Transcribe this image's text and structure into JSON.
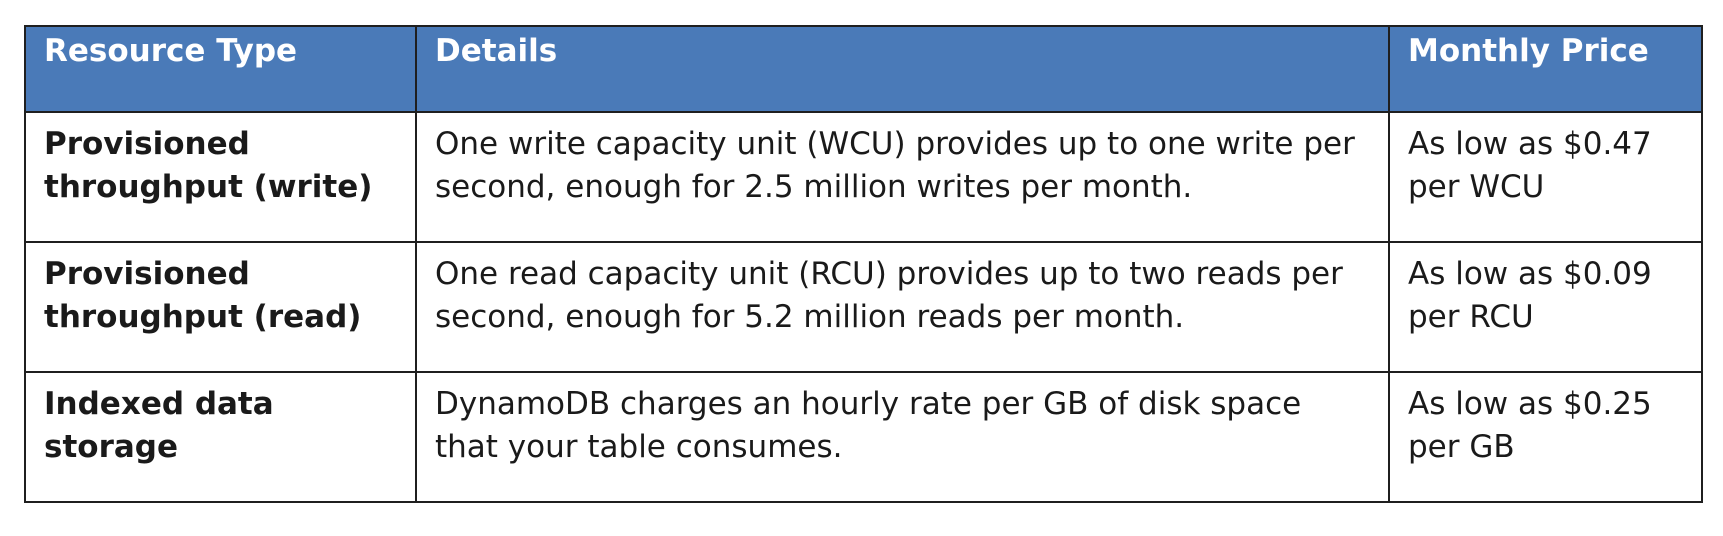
{
  "table": {
    "headers": [
      "Resource Type",
      "Details",
      "Monthly Price"
    ],
    "rows": [
      {
        "type": "Provisioned throughput (write)",
        "details": "One write capacity unit (WCU) provides up to one write per second, enough for 2.5 million writes per month.",
        "price": "As low as $0.47 per WCU"
      },
      {
        "type": "Provisioned throughput (read)",
        "details": "One read capacity unit (RCU) provides up to two reads per second, enough for 5.2 million reads per month.",
        "price": "As low as $0.09 per RCU"
      },
      {
        "type": "Indexed data storage",
        "details": "DynamoDB charges an hourly rate per GB of disk space that your table consumes.",
        "price": "As low as $0.25 per GB"
      }
    ]
  },
  "colors": {
    "header_background": "#4a7ab8",
    "header_text": "#ffffff",
    "border": "#1f1f1f"
  }
}
